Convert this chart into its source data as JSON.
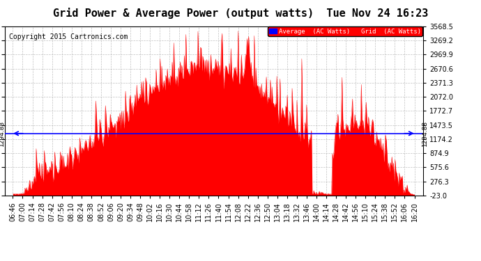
{
  "title": "Grid Power & Average Power (output watts)  Tue Nov 24 16:23",
  "copyright": "Copyright 2015 Cartronics.com",
  "legend_labels": [
    "Average  (AC Watts)",
    "Grid  (AC Watts)"
  ],
  "average_line": 1294.88,
  "ylim": [
    -23.0,
    3568.5
  ],
  "yticks": [
    -23.0,
    276.3,
    575.6,
    874.9,
    1174.2,
    1473.5,
    1772.7,
    2072.0,
    2371.3,
    2670.6,
    2969.9,
    3269.2,
    3568.5
  ],
  "background_color": "#ffffff",
  "grid_color": "#b0b0b0",
  "fill_color": "#ff0000",
  "title_fontsize": 11,
  "tick_fontsize": 7,
  "copyright_fontsize": 7,
  "x_tick_labels": [
    "06:46",
    "07:00",
    "07:14",
    "07:28",
    "07:42",
    "07:56",
    "08:10",
    "08:24",
    "08:38",
    "08:52",
    "09:06",
    "09:20",
    "09:34",
    "09:48",
    "10:02",
    "10:16",
    "10:30",
    "10:44",
    "10:58",
    "11:12",
    "11:26",
    "11:40",
    "11:54",
    "12:08",
    "12:22",
    "12:36",
    "12:50",
    "13:04",
    "13:18",
    "13:32",
    "13:46",
    "14:00",
    "14:14",
    "14:28",
    "14:42",
    "14:56",
    "15:10",
    "15:24",
    "15:38",
    "15:52",
    "16:06",
    "16:20"
  ]
}
